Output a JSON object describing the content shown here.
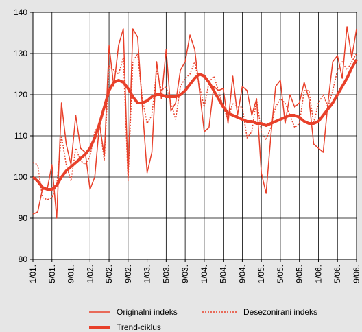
{
  "chart_data": {
    "type": "line",
    "categories": [
      "1/01.",
      null,
      null,
      null,
      "5/01.",
      null,
      null,
      null,
      "9/01.",
      null,
      null,
      null,
      "1/02.",
      null,
      null,
      null,
      "5/02.",
      null,
      null,
      null,
      "9/02.",
      null,
      null,
      null,
      "1/03.",
      null,
      null,
      null,
      "5/03.",
      null,
      null,
      null,
      "9/03.",
      null,
      null,
      null,
      "1/04.",
      null,
      null,
      null,
      "5/04.",
      null,
      null,
      null,
      "9/04.",
      null,
      null,
      null,
      "1/05.",
      null,
      null,
      null,
      "5/05.",
      null,
      null,
      null,
      "9/05.",
      null,
      null,
      null,
      "1/06.",
      null,
      null,
      null,
      "5/06.",
      null,
      null,
      null,
      "9/06."
    ],
    "series": [
      {
        "name": "Originalni indeks",
        "color": "#e8402a",
        "style": "solid",
        "width": 1.5,
        "values": [
          91,
          91.5,
          97,
          97,
          103,
          90,
          118,
          108,
          103,
          115,
          107,
          106,
          97,
          100,
          113,
          105,
          132,
          122,
          132,
          136,
          100,
          136,
          134,
          117,
          101,
          106,
          128,
          119,
          131,
          116,
          118,
          126,
          128,
          134.5,
          131,
          121,
          111,
          112,
          122,
          121,
          121.5,
          113,
          124.5,
          115,
          122,
          121,
          115,
          119,
          101,
          96,
          110,
          122,
          123.5,
          113,
          120,
          117,
          118,
          123,
          119,
          108,
          107,
          106,
          118,
          128,
          129.5,
          124,
          136.5,
          129,
          136
        ]
      },
      {
        "name": "Desezonirani indeks",
        "color": "#e8402a",
        "style": "dotted",
        "width": 1.5,
        "values": [
          103.5,
          103,
          95,
          94.5,
          95,
          98,
          110,
          103,
          99,
          107,
          104,
          103,
          105,
          111,
          113,
          104,
          127,
          126,
          125,
          129,
          99,
          128,
          130,
          119,
          113,
          115,
          126,
          121,
          122,
          118,
          114,
          122,
          124,
          125,
          128,
          122,
          117,
          123,
          124.5,
          121,
          117,
          114,
          118,
          117,
          117,
          109.5,
          111,
          119,
          111,
          109,
          112,
          117,
          119,
          118,
          115,
          112,
          113,
          121,
          121,
          113,
          118,
          120,
          117,
          121,
          126,
          128,
          126,
          128,
          130
        ]
      },
      {
        "name": "Trend-ciklus",
        "color": "#e8402a",
        "style": "solid",
        "width": 4,
        "values": [
          100,
          99,
          97.5,
          97,
          97,
          98,
          100,
          101.5,
          102.5,
          103.5,
          104.5,
          105.5,
          107,
          109.5,
          113,
          117,
          121,
          123,
          123.5,
          123,
          121.5,
          119.5,
          118,
          118,
          118.5,
          119.5,
          120,
          120,
          119.5,
          119.5,
          119.5,
          120,
          121,
          122.5,
          124,
          125,
          124.5,
          123,
          121,
          119,
          117,
          115.5,
          115,
          114.5,
          114,
          113.5,
          113.5,
          113,
          113,
          112.5,
          113,
          113.5,
          114,
          114.5,
          115,
          115,
          114.5,
          113.5,
          113,
          113,
          113.5,
          115,
          116.5,
          118,
          120,
          122,
          124,
          126.5,
          128.5
        ]
      }
    ],
    "ylim": [
      80,
      140
    ],
    "yticks": [
      80,
      90,
      100,
      110,
      120,
      130,
      140
    ],
    "grid": true
  }
}
